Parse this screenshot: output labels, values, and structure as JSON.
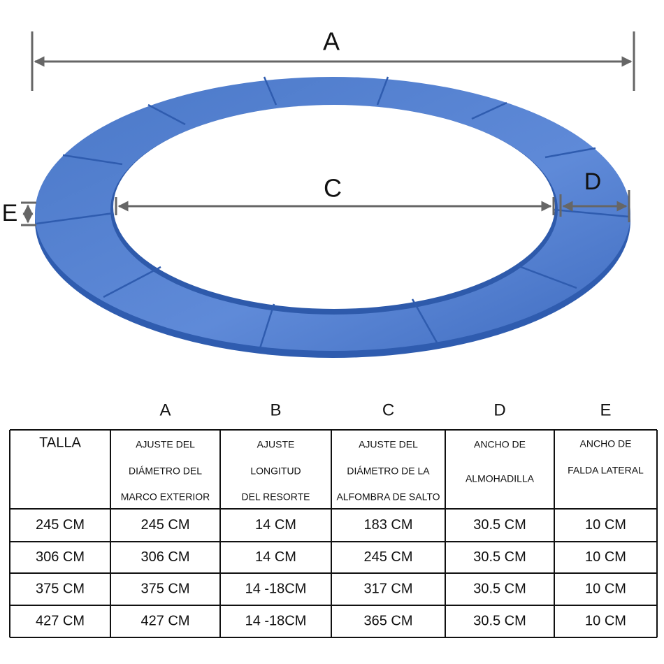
{
  "diagram": {
    "labels": {
      "outer_diameter": "A",
      "inner_diameter": "C",
      "pad_width": "D",
      "skirt": "E"
    }
  },
  "table": {
    "column_letters": [
      "A",
      "B",
      "C",
      "D",
      "E"
    ],
    "header": [
      [
        "TALLA"
      ],
      [
        "AJUSTE DEL",
        "DIÁMETRO DEL",
        "MARCO EXTERIOR"
      ],
      [
        "AJUSTE",
        "LONGITUD",
        "DEL RESORTE"
      ],
      [
        "AJUSTE DEL",
        "DIÁMETRO DE LA",
        "ALFOMBRA DE SALTO"
      ],
      [
        "ANCHO DE",
        "ALMOHADILLA"
      ],
      [
        "ANCHO DE",
        "FALDA LATERAL"
      ]
    ],
    "rows": [
      [
        "245 CM",
        "245 CM",
        "14 CM",
        "183 CM",
        "30.5 CM",
        "10 CM"
      ],
      [
        "306 CM",
        "306 CM",
        "14 CM",
        "245 CM",
        "30.5 CM",
        "10 CM"
      ],
      [
        "375 CM",
        "375 CM",
        "14 -18CM",
        "317 CM",
        "30.5 CM",
        "10 CM"
      ],
      [
        "427 CM",
        "427 CM",
        "14 -18CM",
        "365 CM",
        "30.5 CM",
        "10 CM"
      ]
    ]
  }
}
